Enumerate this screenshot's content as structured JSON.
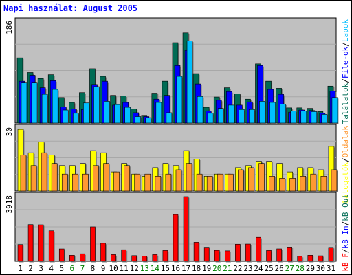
{
  "title": "Napi használat: August 2005",
  "colors": {
    "hits": "#006b54",
    "files": "#0000ff",
    "pages": "#00bfff",
    "visits": "#ffff00",
    "sites": "#ff9933",
    "kbytes": "#ff0000",
    "weekday": "#000000",
    "weekend": "#008000",
    "panel_bg": "#c0c0c0"
  },
  "chart_data": [
    {
      "type": "bar",
      "panel": "top",
      "max_label": "186",
      "ylim": [
        0,
        186
      ],
      "legend_parts": [
        "Találatok",
        "/",
        "File-ok",
        "/",
        "Lapok"
      ],
      "categories": [
        "1",
        "2",
        "3",
        "4",
        "5",
        "6",
        "7",
        "8",
        "9",
        "10",
        "11",
        "12",
        "13",
        "14",
        "15",
        "16",
        "17",
        "18",
        "19",
        "20",
        "21",
        "22",
        "23",
        "24",
        "25",
        "26",
        "27",
        "28",
        "29",
        "30",
        "31"
      ],
      "weekend_days": [
        "6",
        "7",
        "13",
        "14",
        "20",
        "21",
        "27",
        "28"
      ],
      "series": [
        {
          "name": "Találatok",
          "values": [
            120,
            93,
            82,
            89,
            47,
            38,
            56,
            100,
            86,
            51,
            50,
            26,
            13,
            55,
            77,
            148,
            166,
            91,
            29,
            48,
            65,
            54,
            44,
            109,
            77,
            64,
            28,
            28,
            27,
            21,
            68
          ]
        },
        {
          "name": "File-ok",
          "values": [
            77,
            88,
            65,
            78,
            30,
            26,
            25,
            71,
            77,
            33,
            38,
            19,
            12,
            44,
            51,
            106,
            134,
            72,
            22,
            42,
            58,
            33,
            39,
            106,
            62,
            53,
            20,
            24,
            23,
            18,
            59
          ]
        },
        {
          "name": "Lapok",
          "values": [
            75,
            75,
            53,
            62,
            24,
            18,
            37,
            67,
            40,
            34,
            29,
            12,
            10,
            38,
            19,
            86,
            151,
            49,
            18,
            27,
            33,
            25,
            25,
            40,
            38,
            35,
            22,
            22,
            21,
            16,
            47
          ]
        }
      ]
    },
    {
      "type": "bar",
      "panel": "middle",
      "max_label": "30",
      "ylim": [
        0,
        30
      ],
      "legend_parts": [
        "Látogatók",
        "/",
        "Oldalak"
      ],
      "categories": [
        "1",
        "2",
        "3",
        "4",
        "5",
        "6",
        "7",
        "8",
        "9",
        "10",
        "11",
        "12",
        "13",
        "14",
        "15",
        "16",
        "17",
        "18",
        "19",
        "20",
        "21",
        "22",
        "23",
        "24",
        "25",
        "26",
        "27",
        "28",
        "29",
        "30",
        "31"
      ],
      "series": [
        {
          "name": "Látogatók",
          "values": [
            29,
            18,
            23,
            17,
            12,
            12,
            13,
            19,
            18,
            9,
            13,
            8,
            7,
            11,
            13,
            12,
            19,
            15,
            7,
            8,
            8,
            11,
            12,
            14,
            14,
            13,
            9,
            11,
            11,
            10,
            21
          ]
        },
        {
          "name": "Oldalak",
          "values": [
            17,
            12,
            18,
            13,
            8,
            8,
            8,
            12,
            13,
            9,
            12,
            8,
            8,
            7,
            8,
            10,
            13,
            8,
            7,
            8,
            8,
            10,
            11,
            13,
            7,
            6,
            6,
            7,
            8,
            7,
            10
          ]
        }
      ]
    },
    {
      "type": "bar",
      "panel": "bottom",
      "max_label": "3918",
      "ylim": [
        0,
        3918
      ],
      "legend_parts": [
        "kB F",
        "/",
        "kB In",
        "/",
        "kB Out"
      ],
      "categories": [
        "1",
        "2",
        "3",
        "4",
        "5",
        "6",
        "7",
        "8",
        "9",
        "10",
        "11",
        "12",
        "13",
        "14",
        "15",
        "16",
        "17",
        "18",
        "19",
        "20",
        "21",
        "22",
        "23",
        "24",
        "25",
        "26",
        "27",
        "28",
        "29",
        "30",
        "31"
      ],
      "series": [
        {
          "name": "kB F",
          "values": [
            1010,
            2221,
            2208,
            1844,
            748,
            360,
            450,
            2085,
            1090,
            400,
            700,
            340,
            320,
            400,
            650,
            2830,
            3918,
            1150,
            850,
            660,
            630,
            1030,
            1040,
            1450,
            650,
            750,
            860,
            300,
            360,
            330,
            840
          ]
        }
      ]
    }
  ]
}
